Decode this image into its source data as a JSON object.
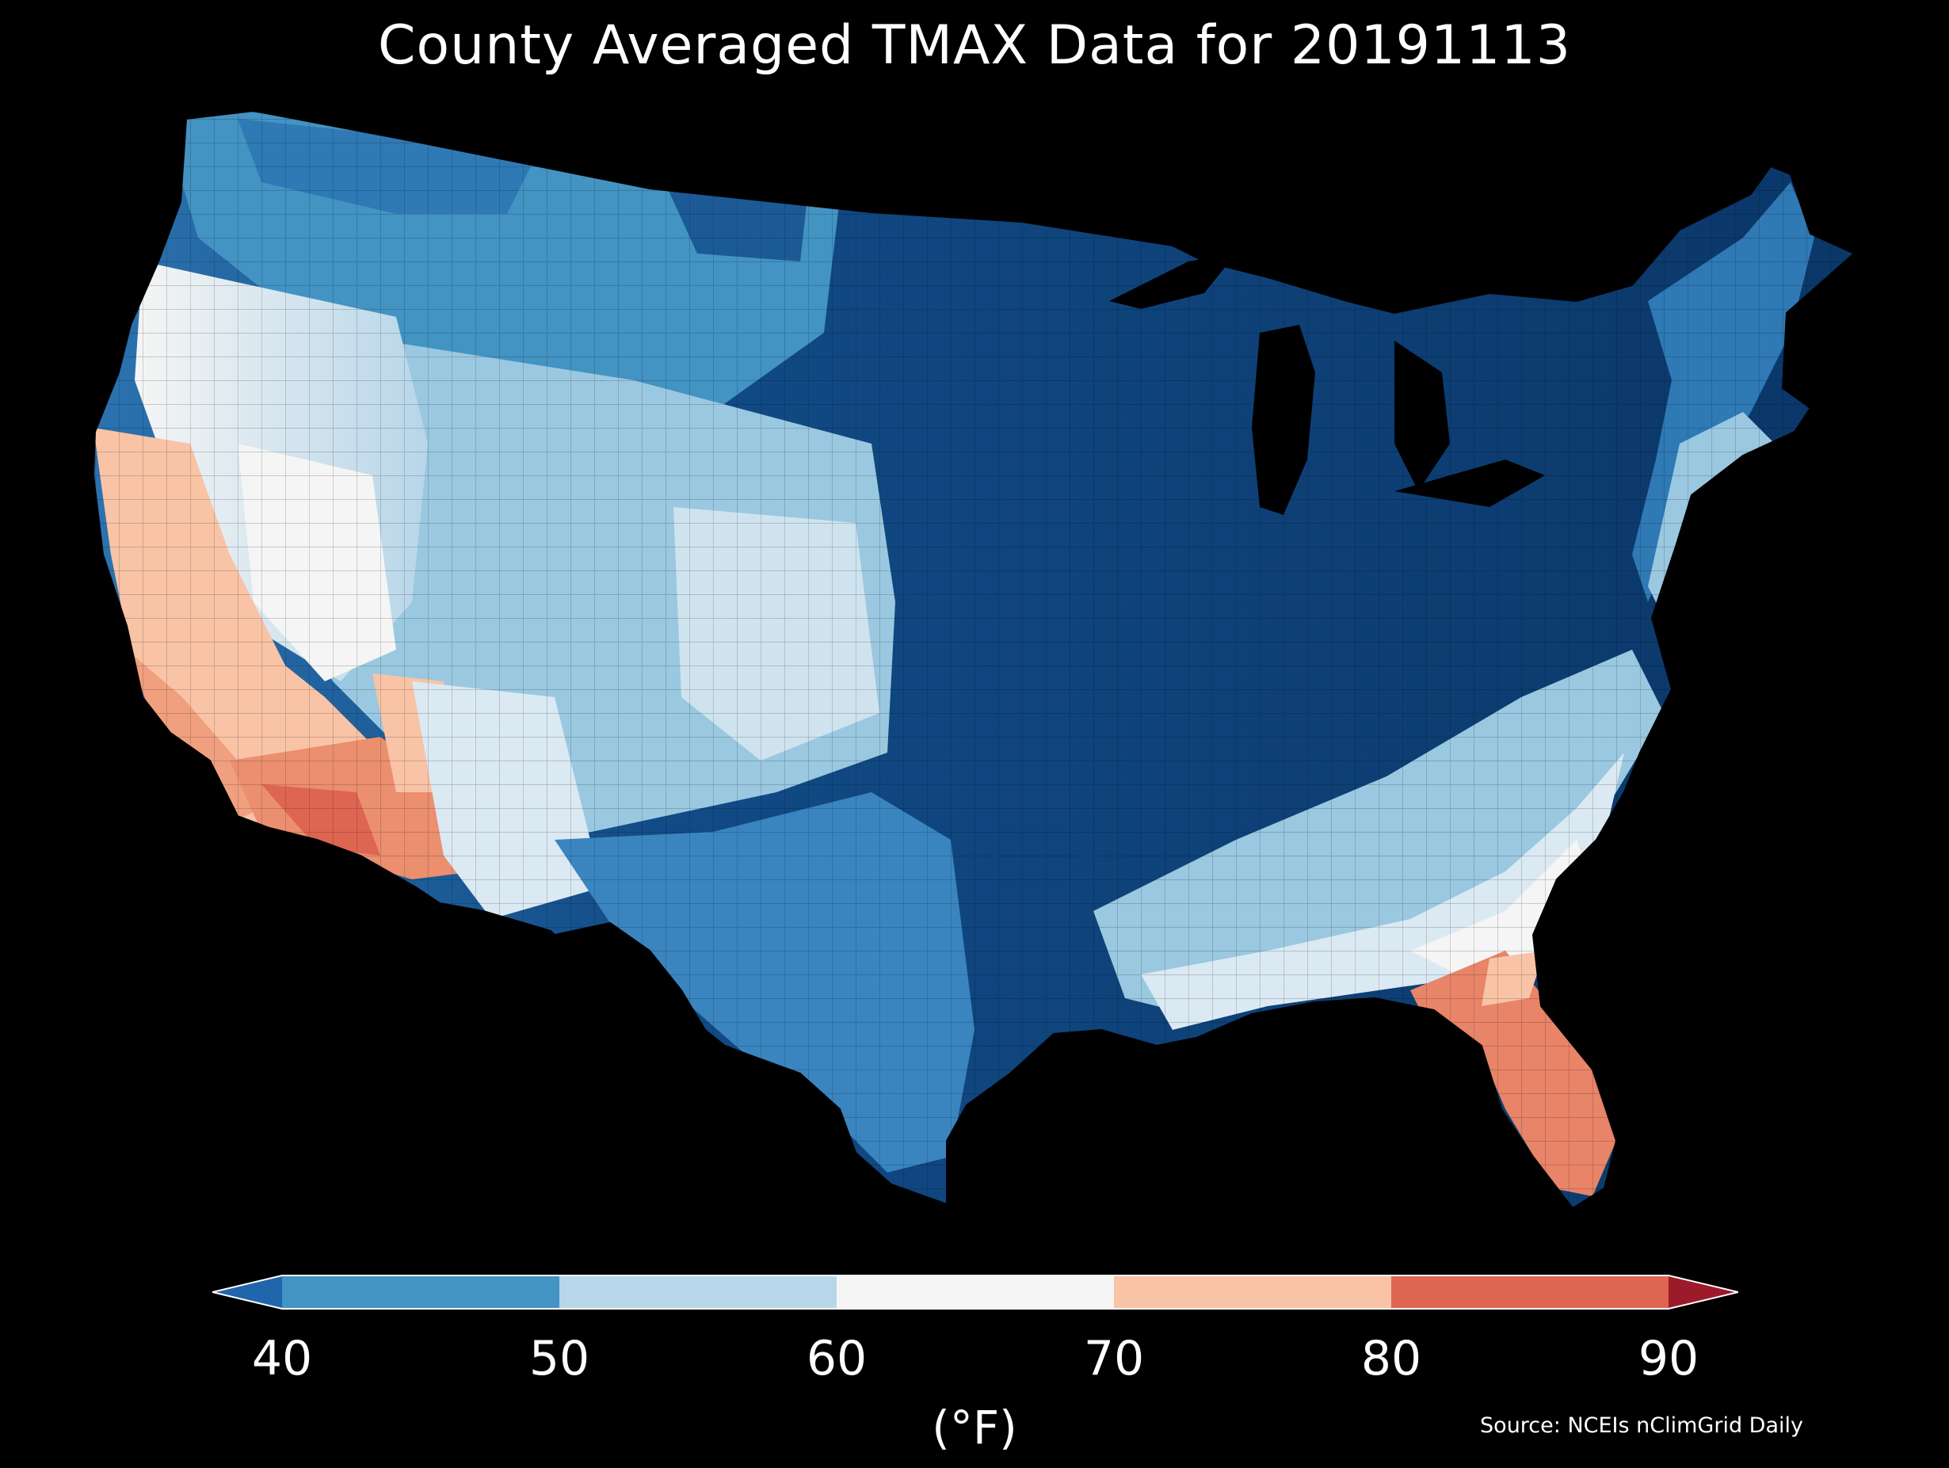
{
  "title": "County Averaged TMAX Data for 20191113",
  "source": "Source: NCEIs nClimGrid Daily",
  "colorbar": {
    "unit": "(°F)",
    "ticks": [
      "40",
      "50",
      "60",
      "70",
      "80",
      "90"
    ],
    "colors": {
      "under": "#2166ac",
      "40-50": "#4393c3",
      "50-60": "#b7d6e9",
      "60-70": "#f5f5f5",
      "70-80": "#f9c3a6",
      "80-90": "#de6552",
      "over": "#9d1a2a"
    }
  },
  "map": {
    "region": "Contiguous United States",
    "variable": "TMAX",
    "date": "20191113"
  }
}
